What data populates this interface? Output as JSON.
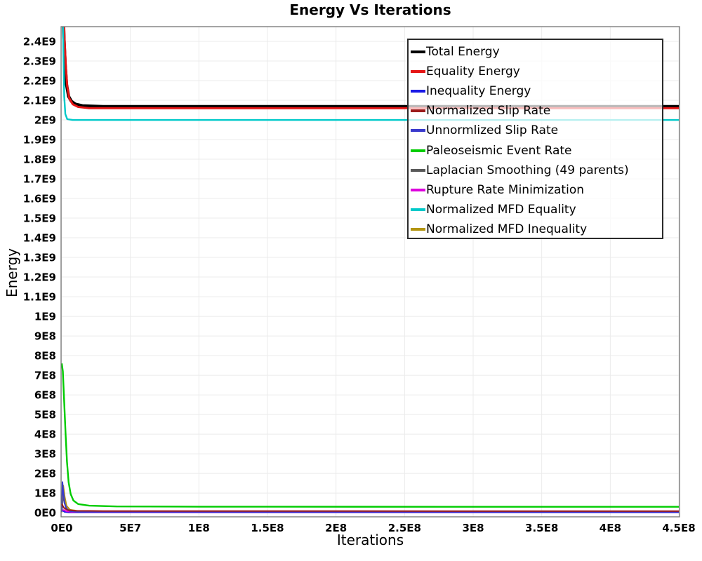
{
  "chart_data": {
    "type": "line",
    "title": "Energy Vs Iterations",
    "xlabel": "Iterations",
    "ylabel": "Energy",
    "xlim": [
      -500000,
      450500000
    ],
    "ylim": [
      -21000000,
      2475000000
    ],
    "grid": true,
    "legend_position": "top-right-inside",
    "legend_background": "rgba(255,255,255,0.72)",
    "x_ticks": {
      "values": [
        0,
        50000000,
        100000000,
        150000000,
        200000000,
        250000000,
        300000000,
        350000000,
        400000000,
        450000000
      ],
      "labels": [
        "0E0",
        "5E7",
        "1E8",
        "1.5E8",
        "2E8",
        "2.5E8",
        "3E8",
        "3.5E8",
        "4E8",
        "4.5E8"
      ]
    },
    "y_ticks": {
      "values": [
        0,
        100000000,
        200000000,
        300000000,
        400000000,
        500000000,
        600000000,
        700000000,
        800000000,
        900000000,
        1000000000,
        1100000000,
        1200000000,
        1300000000,
        1400000000,
        1500000000,
        1600000000,
        1700000000,
        1800000000,
        1900000000,
        2000000000,
        2100000000,
        2200000000,
        2300000000,
        2400000000
      ],
      "labels": [
        "0E0",
        "1E8",
        "2E8",
        "3E8",
        "4E8",
        "5E8",
        "6E8",
        "7E8",
        "8E8",
        "9E8",
        "1E9",
        "1.1E9",
        "1.2E9",
        "1.3E9",
        "1.4E9",
        "1.5E9",
        "1.6E9",
        "1.7E9",
        "1.8E9",
        "1.9E9",
        "2E9",
        "2.1E9",
        "2.2E9",
        "2.3E9",
        "2.4E9"
      ]
    },
    "series": [
      {
        "name": "Total Energy",
        "color": "#000000",
        "width": 4.5,
        "z": 8,
        "points": [
          [
            0,
            3200000000
          ],
          [
            400000,
            2900000000
          ],
          [
            1000000,
            2550000000
          ],
          [
            1600000,
            2420000000
          ],
          [
            2500000,
            2280000000
          ],
          [
            3500000,
            2180000000
          ],
          [
            5000000,
            2120000000
          ],
          [
            7000000,
            2095000000
          ],
          [
            10000000,
            2080000000
          ],
          [
            15000000,
            2072000000
          ],
          [
            30000000,
            2068000000
          ],
          [
            450000000,
            2068000000
          ]
        ]
      },
      {
        "name": "Equality Energy",
        "color": "#e51515",
        "width": 3,
        "z": 9,
        "points": [
          [
            0,
            3200000000
          ],
          [
            600000,
            2900000000
          ],
          [
            1300000,
            2600000000
          ],
          [
            2000000,
            2420000000
          ],
          [
            3000000,
            2270000000
          ],
          [
            4000000,
            2170000000
          ],
          [
            5500000,
            2110000000
          ],
          [
            8000000,
            2080000000
          ],
          [
            12000000,
            2066000000
          ],
          [
            20000000,
            2060000000
          ],
          [
            450000000,
            2060000000
          ]
        ]
      },
      {
        "name": "Inequality Energy",
        "color": "#1a1ae6",
        "width": 2,
        "z": 1,
        "points": [
          [
            0,
            15000000
          ],
          [
            2000000,
            4000000
          ],
          [
            5000000,
            1500000
          ],
          [
            450000000,
            1200000
          ]
        ]
      },
      {
        "name": "Normalized Slip Rate",
        "color": "#9b1b1b",
        "width": 2,
        "z": 6,
        "points": [
          [
            0,
            45000000
          ],
          [
            1500000,
            25000000
          ],
          [
            4000000,
            14000000
          ],
          [
            10000000,
            10000000
          ],
          [
            30000000,
            8500000
          ],
          [
            450000000,
            8000000
          ]
        ]
      },
      {
        "name": "Unnormlized Slip Rate",
        "color": "#3a3acc",
        "width": 2,
        "z": 5,
        "points": [
          [
            0,
            4000000
          ],
          [
            500000,
            156000000
          ],
          [
            1100000,
            110000000
          ],
          [
            2000000,
            50000000
          ],
          [
            3500000,
            20000000
          ],
          [
            6000000,
            8000000
          ],
          [
            12000000,
            3500000
          ],
          [
            450000000,
            2500000
          ]
        ]
      },
      {
        "name": "Paleoseismic Event Rate",
        "color": "#00cc00",
        "width": 2.4,
        "z": 7,
        "points": [
          [
            0,
            760000000
          ],
          [
            800000,
            720000000
          ],
          [
            1800000,
            560000000
          ],
          [
            2800000,
            400000000
          ],
          [
            3800000,
            260000000
          ],
          [
            5000000,
            155000000
          ],
          [
            6500000,
            95000000
          ],
          [
            8500000,
            62000000
          ],
          [
            12000000,
            44000000
          ],
          [
            20000000,
            36000000
          ],
          [
            40000000,
            32000000
          ],
          [
            100000000,
            30500000
          ],
          [
            450000000,
            30000000
          ]
        ]
      },
      {
        "name": "Laplacian Smoothing (49 parents)",
        "color": "#595959",
        "width": 2,
        "z": 3,
        "points": [
          [
            0,
            3000000
          ],
          [
            900000,
            95000000
          ],
          [
            1800000,
            55000000
          ],
          [
            3000000,
            26000000
          ],
          [
            5000000,
            12000000
          ],
          [
            9000000,
            6000000
          ],
          [
            20000000,
            4500000
          ],
          [
            450000000,
            4000000
          ]
        ]
      },
      {
        "name": "Rupture Rate Minimization",
        "color": "#dd00dd",
        "width": 2,
        "z": 2,
        "points": [
          [
            0,
            9000000
          ],
          [
            1500000,
            14000000
          ],
          [
            3500000,
            7000000
          ],
          [
            8000000,
            3500000
          ],
          [
            20000000,
            2200000
          ],
          [
            450000000,
            2000000
          ]
        ]
      },
      {
        "name": "Normalized MFD Equality",
        "color": "#00c9c9",
        "width": 2.4,
        "z": 10,
        "points": [
          [
            0,
            3000000000
          ],
          [
            700000,
            2700000000
          ],
          [
            1200000,
            2350000000
          ],
          [
            1800000,
            2120000000
          ],
          [
            2600000,
            2030000000
          ],
          [
            4000000,
            2004000000
          ],
          [
            8000000,
            2000000000
          ],
          [
            450000000,
            2000000000
          ]
        ]
      },
      {
        "name": "Normalized MFD Inequality",
        "color": "#b3950f",
        "width": 2,
        "z": 4,
        "points": [
          [
            0,
            2000000
          ],
          [
            1100000,
            138000000
          ],
          [
            2200000,
            80000000
          ],
          [
            3500000,
            35000000
          ],
          [
            6000000,
            15000000
          ],
          [
            12000000,
            9000000
          ],
          [
            30000000,
            7500000
          ],
          [
            450000000,
            7000000
          ]
        ]
      }
    ]
  },
  "style_colors": {
    "grid": "#ebebeb",
    "plot_border": "#737373",
    "legend_border": "#2b2b2b"
  }
}
